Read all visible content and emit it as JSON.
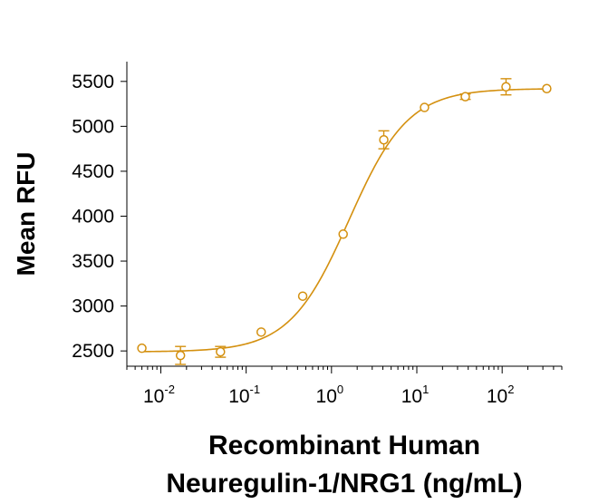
{
  "chart_data": {
    "type": "scatter",
    "title": "",
    "ylabel": "Mean RFU",
    "xlabel_lines": [
      "Recombinant Human",
      "Neuregulin-1/NRG1 (ng/mL)"
    ],
    "x_scale": "log",
    "xlim": [
      0.004,
      500
    ],
    "ylim": [
      2330,
      5720
    ],
    "y_ticks": [
      2500,
      3000,
      3500,
      4000,
      4500,
      5000,
      5500
    ],
    "y_tick_labels": [
      "2500",
      "3000",
      "3500",
      "4000",
      "4500",
      "5000",
      "5500"
    ],
    "x_ticks": [
      0.01,
      0.1,
      1,
      10,
      100
    ],
    "x_tick_labels": [
      {
        "base": "10",
        "exp": "-2"
      },
      {
        "base": "10",
        "exp": "-1"
      },
      {
        "base": "10",
        "exp": "0"
      },
      {
        "base": "10",
        "exp": "1"
      },
      {
        "base": "10",
        "exp": "2"
      }
    ],
    "grid": false,
    "legend": "none",
    "series": [
      {
        "color": "#d4900f",
        "marker": "open-circle",
        "points": [
          {
            "x": 0.006,
            "y": 2530,
            "err": 0
          },
          {
            "x": 0.017,
            "y": 2450,
            "err": 100
          },
          {
            "x": 0.05,
            "y": 2490,
            "err": 60
          },
          {
            "x": 0.15,
            "y": 2710,
            "err": 0
          },
          {
            "x": 0.46,
            "y": 3110,
            "err": 0
          },
          {
            "x": 1.37,
            "y": 3800,
            "err": 0
          },
          {
            "x": 4.1,
            "y": 4850,
            "err": 100
          },
          {
            "x": 12.3,
            "y": 5210,
            "err": 0
          },
          {
            "x": 37,
            "y": 5330,
            "err": 30
          },
          {
            "x": 111,
            "y": 5440,
            "err": 90
          },
          {
            "x": 333,
            "y": 5420,
            "err": 0
          }
        ],
        "fit": {
          "bottom": 2490,
          "top": 5420,
          "ec50": 1.6,
          "hill": 1.25
        }
      }
    ]
  }
}
